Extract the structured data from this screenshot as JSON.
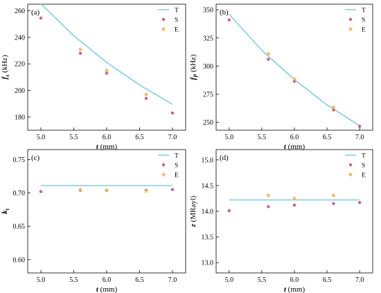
{
  "colors": {
    "T": "#4fc3e8",
    "S": "#d8578f",
    "E": "#f5b942"
  },
  "chart_data": [
    {
      "type": "scatter",
      "panel": "(a)",
      "ylabel_main": "f",
      "ylabel_sub": "s",
      "ylabel_unit": "(kHz)",
      "xlabel_main": "t",
      "xlabel_unit": "(mm)",
      "xlim": [
        4.8,
        7.2
      ],
      "ylim": [
        170,
        265
      ],
      "xticks": [
        "5.0",
        "5.5",
        "6.0",
        "6.5",
        "7.0"
      ],
      "yticks": [
        "180",
        "200",
        "220",
        "240",
        "260"
      ],
      "legend": [
        "T",
        "S",
        "E"
      ],
      "series": [
        {
          "name": "T",
          "kind": "line",
          "x": [
            5.0,
            5.5,
            6.0,
            6.5,
            7.0
          ],
          "y": [
            265.3,
            241.2,
            221.1,
            204.1,
            189.5
          ]
        },
        {
          "name": "S",
          "kind": "points",
          "x": [
            5.0,
            5.6,
            6.0,
            6.6,
            7.0
          ],
          "y": [
            254.5,
            228.0,
            213.0,
            194.0,
            183.0
          ]
        },
        {
          "name": "E",
          "kind": "points",
          "x": [
            5.6,
            6.0,
            6.6
          ],
          "y": [
            231.0,
            215.0,
            197.0
          ]
        }
      ]
    },
    {
      "type": "scatter",
      "panel": "(b)",
      "ylabel_main": "f",
      "ylabel_sub": "P",
      "ylabel_unit": "(kHz)",
      "xlabel_main": "t",
      "xlabel_unit": "(mm)",
      "xlim": [
        4.8,
        7.2
      ],
      "ylim": [
        243,
        355
      ],
      "xticks": [
        "5.0",
        "5.5",
        "6.0",
        "6.5",
        "7.0"
      ],
      "yticks": [
        "250",
        "275",
        "300",
        "325",
        "350"
      ],
      "legend": [
        "T",
        "S",
        "E"
      ],
      "series": [
        {
          "name": "T",
          "kind": "line",
          "x": [
            5.0,
            5.5,
            6.0,
            6.5,
            7.0
          ],
          "y": [
            346.0,
            314.0,
            288.0,
            265.5,
            247.0
          ]
        },
        {
          "name": "S",
          "kind": "points",
          "x": [
            5.0,
            5.6,
            6.0,
            6.6,
            7.0
          ],
          "y": [
            341.0,
            306.0,
            286.5,
            261.0,
            246.5
          ]
        },
        {
          "name": "E",
          "kind": "points",
          "x": [
            5.6,
            6.0,
            6.6
          ],
          "y": [
            311.0,
            288.5,
            263.5
          ]
        }
      ]
    },
    {
      "type": "scatter",
      "panel": "(c)",
      "ylabel_main": "k",
      "ylabel_sub": "t",
      "ylabel_unit": "",
      "xlabel_main": "t",
      "xlabel_unit": "(mm)",
      "xlim": [
        4.8,
        7.2
      ],
      "ylim": [
        0.58,
        0.765
      ],
      "xticks": [
        "5.0",
        "5.5",
        "6.0",
        "6.5",
        "7.0"
      ],
      "yticks": [
        "0.60",
        "0.65",
        "0.70",
        "0.75"
      ],
      "legend": [
        "T",
        "S",
        "E"
      ],
      "series": [
        {
          "name": "T",
          "kind": "line",
          "x": [
            5.0,
            7.0
          ],
          "y": [
            0.711,
            0.711
          ]
        },
        {
          "name": "S",
          "kind": "points",
          "x": [
            5.0,
            5.6,
            6.0,
            6.6,
            7.0
          ],
          "y": [
            0.702,
            0.704,
            0.704,
            0.704,
            0.705
          ]
        },
        {
          "name": "E",
          "kind": "points",
          "x": [
            5.6,
            6.0,
            6.6
          ],
          "y": [
            0.705,
            0.704,
            0.703
          ]
        }
      ]
    },
    {
      "type": "scatter",
      "panel": "(d)",
      "ylabel_main": "z",
      "ylabel_sub": "",
      "ylabel_unit": "(MRayl)",
      "xlabel_main": "t",
      "xlabel_unit": "(mm)",
      "xlim": [
        4.8,
        7.2
      ],
      "ylim": [
        12.8,
        15.2
      ],
      "xticks": [
        "5.0",
        "5.5",
        "6.0",
        "6.5",
        "7.0"
      ],
      "yticks": [
        "13.0",
        "13.5",
        "14.0",
        "14.5",
        "15.0"
      ],
      "legend": [
        "T",
        "S",
        "E"
      ],
      "series": [
        {
          "name": "T",
          "kind": "line",
          "x": [
            5.0,
            7.0
          ],
          "y": [
            14.22,
            14.22
          ]
        },
        {
          "name": "S",
          "kind": "points",
          "x": [
            5.0,
            5.6,
            6.0,
            6.6,
            7.0
          ],
          "y": [
            14.01,
            14.09,
            14.12,
            14.15,
            14.17
          ]
        },
        {
          "name": "E",
          "kind": "points",
          "x": [
            5.6,
            6.0,
            6.6
          ],
          "y": [
            14.31,
            14.25,
            14.31
          ]
        }
      ]
    }
  ]
}
